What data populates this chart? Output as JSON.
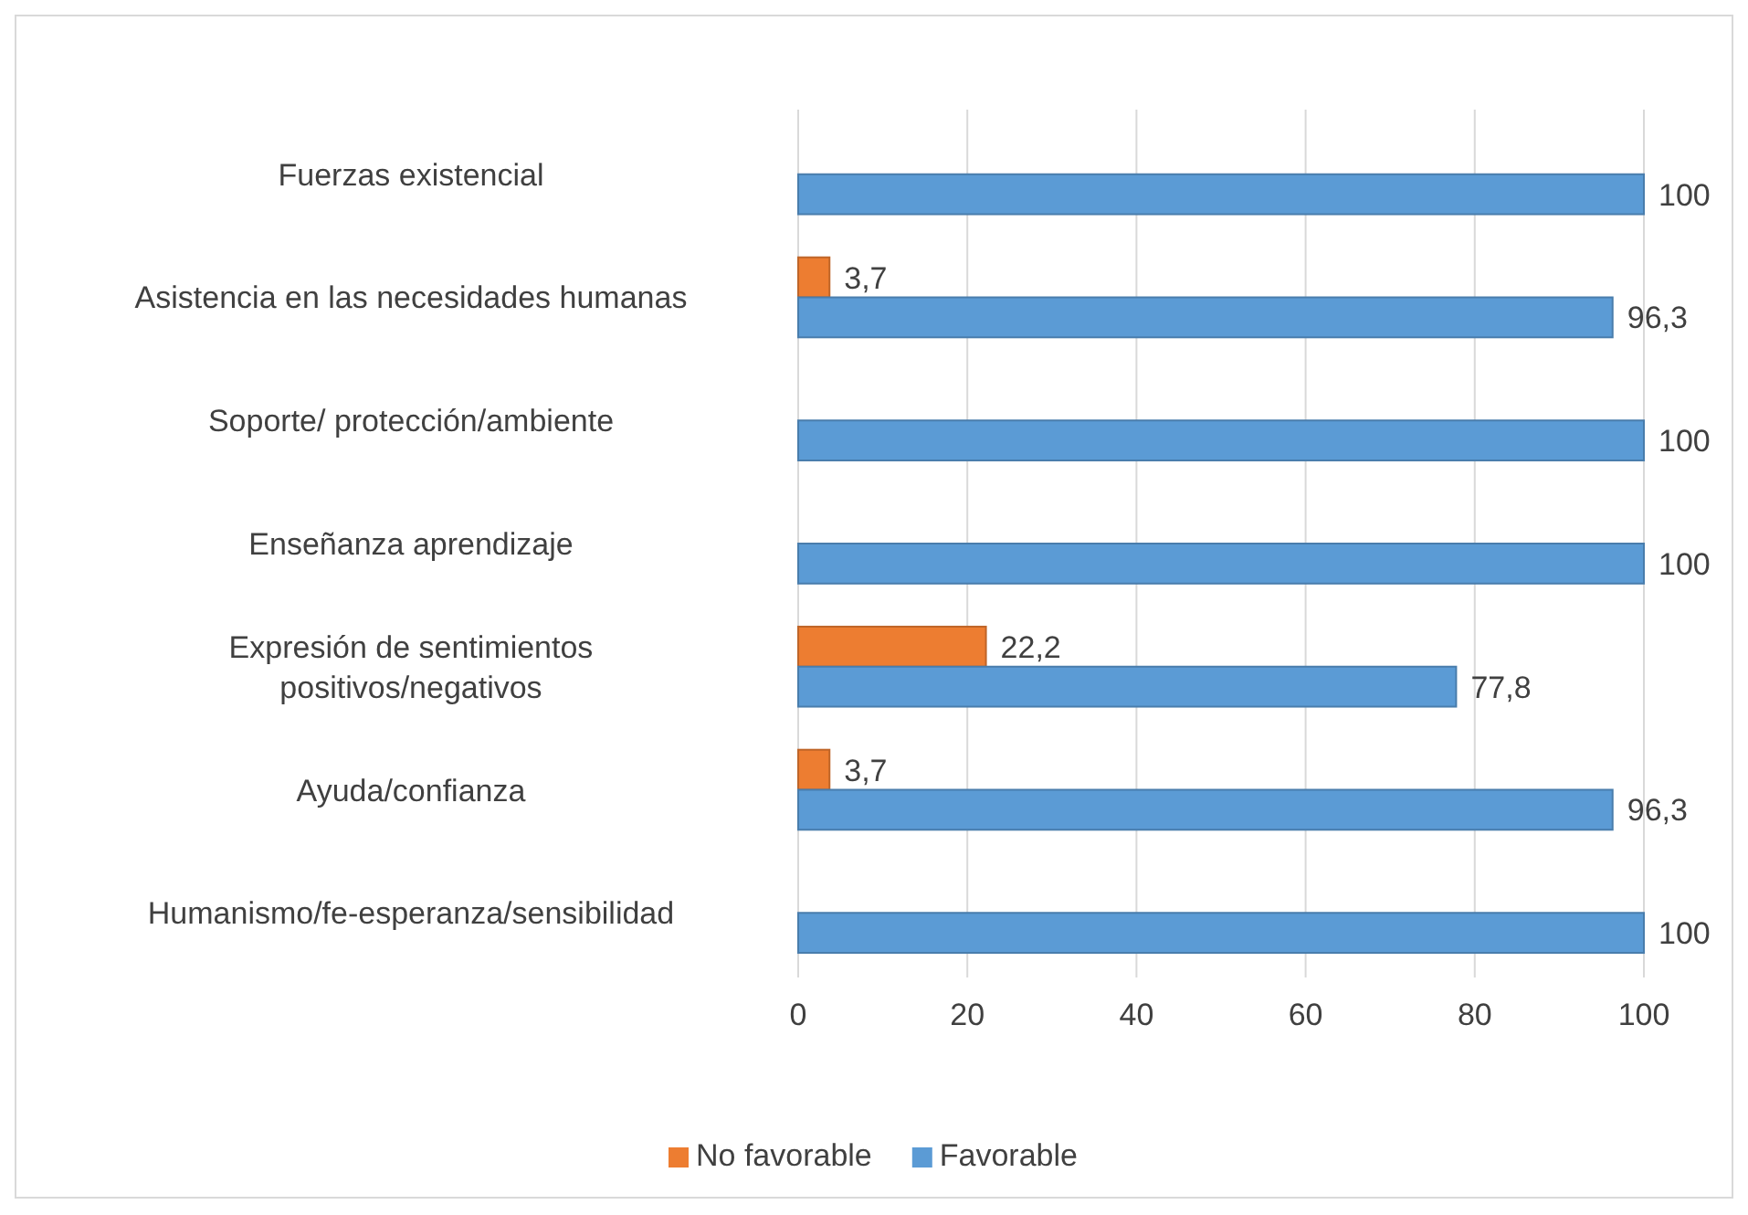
{
  "chart_data": {
    "type": "bar",
    "orientation": "horizontal",
    "categories": [
      "Fuerzas existencial",
      "Asistencia en las necesidades humanas",
      "Soporte/ protección/ambiente",
      "Enseñanza aprendizaje",
      "Expresión de sentimientos positivos/negativos",
      "Ayuda/confianza",
      "Humanismo/fe-esperanza/sensibilidad"
    ],
    "series": [
      {
        "name": "No favorable",
        "color": "#ed7d31",
        "values": [
          null,
          3.7,
          null,
          null,
          22.2,
          3.7,
          null
        ],
        "value_labels": [
          null,
          "3,7",
          null,
          null,
          "22,2",
          "3,7",
          null
        ]
      },
      {
        "name": "Favorable",
        "color": "#5b9bd5",
        "values": [
          100,
          96.3,
          100,
          100,
          77.8,
          96.3,
          100
        ],
        "value_labels": [
          "100",
          "96,3",
          "100",
          "100",
          "77,8",
          "96,3",
          "100"
        ]
      }
    ],
    "xlim": [
      0,
      100
    ],
    "xticks": [
      0,
      20,
      40,
      60,
      80,
      100
    ],
    "grid": "x",
    "legend": "bottom"
  }
}
